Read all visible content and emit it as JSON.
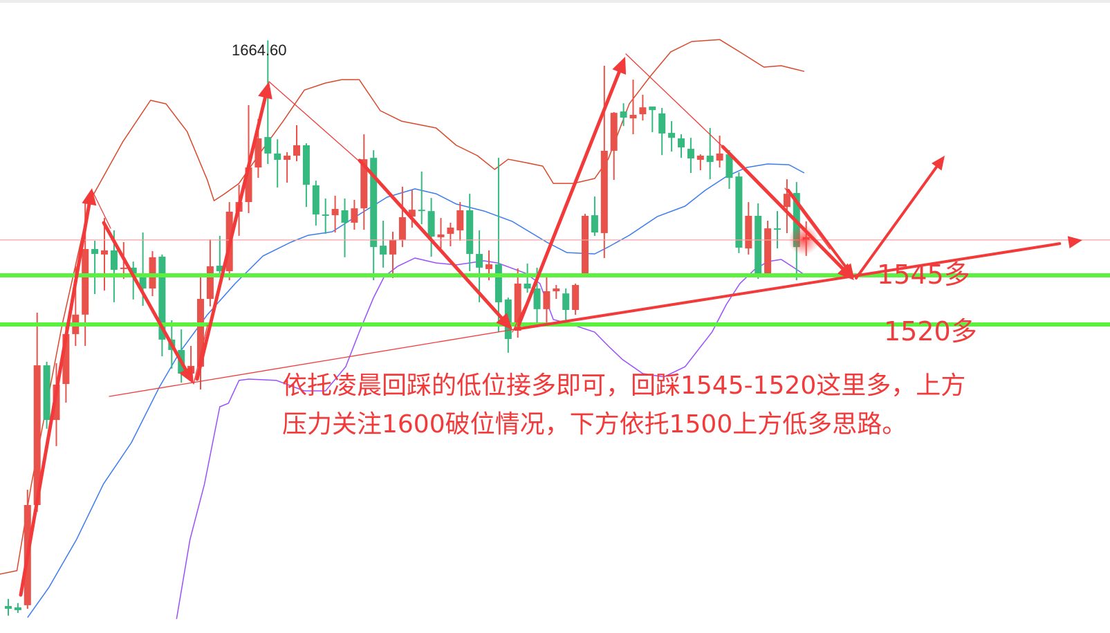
{
  "chart_data": {
    "type": "candlestick",
    "title": "",
    "xlabel": "",
    "ylabel": "",
    "ylim": [
      1370,
      1685
    ],
    "grid": false,
    "colors": {
      "up": "#e8524a",
      "down": "#35b97f",
      "upper_band": "#d9482b",
      "middle_band": "#3a7bf0",
      "lower_band": "#9b4dff",
      "support_lines": "#5ef040",
      "last_price_line": "#f4a0a0",
      "annotation": "#f23a3a"
    },
    "candles_ohlc": [
      [
        1376.7,
        1380.3,
        1371.8,
        1375.3
      ],
      [
        1376.0,
        1378.2,
        1373.2,
        1374.6
      ],
      [
        1377.1,
        1435.9,
        1375.3,
        1428.1
      ],
      [
        1428.1,
        1526.0,
        1424.6,
        1499.2
      ],
      [
        1499.2,
        1501.0,
        1466.9,
        1471.4
      ],
      [
        1471.4,
        1500.3,
        1458.1,
        1489.4
      ],
      [
        1489.7,
        1520.4,
        1480.2,
        1515.1
      ],
      [
        1515.1,
        1549.6,
        1509.1,
        1525.0
      ],
      [
        1525.0,
        1582.3,
        1509.1,
        1558.4
      ],
      [
        1558.4,
        1562.6,
        1535.5,
        1555.9
      ],
      [
        1555.6,
        1574.2,
        1537.3,
        1557.7
      ],
      [
        1557.7,
        1567.9,
        1531.3,
        1547.8
      ],
      [
        1548.2,
        1561.9,
        1543.2,
        1548.9
      ],
      [
        1548.9,
        1552.0,
        1532.7,
        1544.6
      ],
      [
        1544.3,
        1566.8,
        1529.5,
        1538.3
      ],
      [
        1538.3,
        1557.3,
        1534.4,
        1554.2
      ],
      [
        1554.5,
        1555.6,
        1503.8,
        1512.3
      ],
      [
        1512.3,
        1522.1,
        1497.5,
        1507.0
      ],
      [
        1507.0,
        1517.5,
        1490.4,
        1495.0
      ],
      [
        1495.0,
        1509.1,
        1491.5,
        1498.9
      ],
      [
        1498.5,
        1544.6,
        1486.9,
        1533.0
      ],
      [
        1533.0,
        1563.3,
        1529.2,
        1549.6
      ],
      [
        1549.9,
        1565.1,
        1545.4,
        1547.1
      ],
      [
        1547.1,
        1582.3,
        1542.5,
        1577.4
      ],
      [
        1577.4,
        1591.1,
        1565.1,
        1582.3
      ],
      [
        1582.3,
        1631.6,
        1576.7,
        1599.9
      ],
      [
        1599.9,
        1624.6,
        1594.6,
        1614.7
      ],
      [
        1615.4,
        1664.6,
        1601.7,
        1607.0
      ],
      [
        1607.0,
        1614.3,
        1589.7,
        1603.8
      ],
      [
        1603.8,
        1607.7,
        1592.2,
        1605.9
      ],
      [
        1605.9,
        1621.4,
        1603.1,
        1611.2
      ],
      [
        1611.2,
        1612.2,
        1579.8,
        1591.1
      ],
      [
        1590.8,
        1593.2,
        1570.3,
        1576.0
      ],
      [
        1576.0,
        1584.1,
        1566.1,
        1575.3
      ],
      [
        1575.6,
        1585.5,
        1566.8,
        1578.8
      ],
      [
        1578.1,
        1584.1,
        1554.2,
        1571.8
      ],
      [
        1571.8,
        1583.4,
        1568.2,
        1579.1
      ],
      [
        1579.1,
        1616.8,
        1568.2,
        1604.1
      ],
      [
        1604.8,
        1608.7,
        1542.5,
        1559.4
      ],
      [
        1560.1,
        1572.8,
        1548.9,
        1555.6
      ],
      [
        1555.6,
        1567.2,
        1543.6,
        1563.0
      ],
      [
        1563.0,
        1590.1,
        1559.4,
        1574.6
      ],
      [
        1574.9,
        1588.3,
        1569.3,
        1578.4
      ],
      [
        1578.4,
        1597.8,
        1571.0,
        1578.1
      ],
      [
        1577.7,
        1584.4,
        1554.5,
        1564.7
      ],
      [
        1564.4,
        1574.2,
        1558.7,
        1565.8
      ],
      [
        1566.1,
        1571.8,
        1559.8,
        1569.3
      ],
      [
        1567.9,
        1582.3,
        1562.6,
        1578.1
      ],
      [
        1578.1,
        1586.5,
        1547.1,
        1555.9
      ],
      [
        1555.9,
        1567.9,
        1531.3,
        1548.9
      ],
      [
        1548.2,
        1557.7,
        1542.5,
        1550.6
      ],
      [
        1550.6,
        1604.8,
        1516.1,
        1531.3
      ],
      [
        1532.7,
        1533.7,
        1505.6,
        1512.6
      ],
      [
        1516.8,
        1548.5,
        1513.3,
        1540.8
      ],
      [
        1540.8,
        1551.0,
        1536.2,
        1538.3
      ],
      [
        1538.3,
        1548.9,
        1520.4,
        1527.8
      ],
      [
        1527.8,
        1545.4,
        1519.7,
        1536.9
      ],
      [
        1536.9,
        1540.1,
        1533.0,
        1538.3
      ],
      [
        1535.8,
        1538.3,
        1522.1,
        1527.4
      ],
      [
        1527.4,
        1540.8,
        1524.9,
        1540.1
      ],
      [
        1545.0,
        1576.3,
        1544.3,
        1575.3
      ],
      [
        1575.6,
        1585.1,
        1565.1,
        1566.8
      ],
      [
        1566.5,
        1651.7,
        1553.8,
        1608.4
      ],
      [
        1608.4,
        1628.1,
        1593.6,
        1627.7
      ],
      [
        1628.4,
        1632.6,
        1621.0,
        1625.3
      ],
      [
        1624.9,
        1644.6,
        1616.8,
        1626.7
      ],
      [
        1627.0,
        1636.9,
        1623.8,
        1630.5
      ],
      [
        1630.9,
        1630.9,
        1617.9,
        1629.1
      ],
      [
        1627.4,
        1630.2,
        1606.2,
        1617.2
      ],
      [
        1617.5,
        1623.5,
        1608.0,
        1615.0
      ],
      [
        1614.7,
        1616.8,
        1604.8,
        1610.1
      ],
      [
        1609.4,
        1615.0,
        1597.1,
        1604.5
      ],
      [
        1603.8,
        1606.6,
        1598.5,
        1605.9
      ],
      [
        1605.9,
        1620.0,
        1593.9,
        1602.7
      ],
      [
        1603.4,
        1616.1,
        1599.9,
        1607.0
      ],
      [
        1606.6,
        1608.7,
        1589.0,
        1594.6
      ],
      [
        1595.3,
        1597.4,
        1556.3,
        1559.1
      ],
      [
        1558.7,
        1582.3,
        1555.6,
        1575.3
      ],
      [
        1575.3,
        1581.6,
        1543.2,
        1545.0
      ],
      [
        1545.0,
        1572.8,
        1545.0,
        1568.9
      ],
      [
        1568.9,
        1577.7,
        1558.7,
        1568.2
      ],
      [
        1579.8,
        1593.9,
        1566.5,
        1586.5
      ],
      [
        1586.9,
        1592.5,
        1542.5,
        1559.4
      ],
      [
        1563.0,
        1572.5,
        1554.9,
        1564.4
      ]
    ],
    "bands": {
      "upper": [
        [
          -0.9,
          1392.9
        ],
        [
          0.9,
          1394.7
        ],
        [
          2.4,
          1438.7
        ],
        [
          5.6,
          1519.7
        ],
        [
          8.5,
          1583.0
        ],
        [
          11.9,
          1612.9
        ],
        [
          14.8,
          1634.1
        ],
        [
          16.4,
          1632.3
        ],
        [
          18.6,
          1618.2
        ],
        [
          20.7,
          1593.6
        ],
        [
          21.4,
          1583.0
        ],
        [
          22.5,
          1586.5
        ],
        [
          24.0,
          1591.8
        ],
        [
          25.0,
          1598.9
        ],
        [
          26.5,
          1609.4
        ],
        [
          28.6,
          1623.5
        ],
        [
          30.8,
          1639.3
        ],
        [
          33.0,
          1642.9
        ],
        [
          34.7,
          1644.6
        ],
        [
          36.5,
          1644.6
        ],
        [
          38.7,
          1628.8
        ],
        [
          40.9,
          1623.5
        ],
        [
          44.5,
          1620.0
        ],
        [
          46.6,
          1611.2
        ],
        [
          48.8,
          1605.9
        ],
        [
          50.6,
          1598.9
        ],
        [
          52.0,
          1604.1
        ],
        [
          53.8,
          1602.4
        ],
        [
          55.6,
          1600.6
        ],
        [
          56.7,
          1591.8
        ],
        [
          58.8,
          1591.8
        ],
        [
          61.0,
          1594.3
        ],
        [
          62.4,
          1604.1
        ],
        [
          64.6,
          1632.3
        ],
        [
          66.8,
          1646.4
        ],
        [
          68.9,
          1658.7
        ],
        [
          71.1,
          1664.0
        ],
        [
          74.0,
          1665.0
        ],
        [
          76.1,
          1658.7
        ],
        [
          78.6,
          1651.0
        ],
        [
          80.4,
          1651.7
        ],
        [
          82.8,
          1648.8
        ]
      ],
      "middle": [
        [
          2.0,
          1370.8
        ],
        [
          4.2,
          1386.0
        ],
        [
          7.1,
          1410.6
        ],
        [
          9.9,
          1438.8
        ],
        [
          12.8,
          1459.8
        ],
        [
          15.7,
          1488.0
        ],
        [
          17.8,
          1505.6
        ],
        [
          20.7,
          1524.9
        ],
        [
          23.6,
          1540.8
        ],
        [
          26.5,
          1554.9
        ],
        [
          29.4,
          1561.9
        ],
        [
          31.2,
          1565.4
        ],
        [
          33.7,
          1567.2
        ],
        [
          36.5,
          1576.0
        ],
        [
          39.4,
          1584.8
        ],
        [
          42.3,
          1589.0
        ],
        [
          44.5,
          1586.5
        ],
        [
          46.6,
          1581.3
        ],
        [
          49.5,
          1577.7
        ],
        [
          52.4,
          1572.5
        ],
        [
          56.0,
          1561.9
        ],
        [
          58.1,
          1556.6
        ],
        [
          61.0,
          1555.9
        ],
        [
          62.4,
          1559.4
        ],
        [
          64.6,
          1565.4
        ],
        [
          67.5,
          1574.9
        ],
        [
          70.4,
          1580.2
        ],
        [
          72.5,
          1588.3
        ],
        [
          74.7,
          1595.3
        ],
        [
          76.8,
          1599.9
        ],
        [
          79.0,
          1601.7
        ],
        [
          81.2,
          1601.3
        ],
        [
          82.8,
          1597.1
        ]
      ],
      "lower": [
        [
          17.5,
          1370.1
        ],
        [
          18.9,
          1410.5
        ],
        [
          20.4,
          1438.7
        ],
        [
          22.0,
          1478.1
        ],
        [
          22.9,
          1479.9
        ],
        [
          24.0,
          1491.5
        ],
        [
          25.0,
          1492.2
        ],
        [
          27.9,
          1491.5
        ],
        [
          30.8,
          1486.2
        ],
        [
          33.0,
          1486.2
        ],
        [
          35.1,
          1498.5
        ],
        [
          36.5,
          1516.1
        ],
        [
          38.0,
          1533.7
        ],
        [
          39.1,
          1544.3
        ],
        [
          40.5,
          1549.6
        ],
        [
          42.3,
          1553.8
        ],
        [
          44.5,
          1551.3
        ],
        [
          46.6,
          1550.3
        ],
        [
          49.5,
          1552.4
        ],
        [
          50.9,
          1551.3
        ],
        [
          53.8,
          1546.1
        ],
        [
          55.3,
          1540.8
        ],
        [
          56.7,
          1522.5
        ],
        [
          58.8,
          1519.7
        ],
        [
          61.0,
          1516.1
        ],
        [
          62.4,
          1509.1
        ],
        [
          63.9,
          1502.1
        ],
        [
          66.0,
          1495.0
        ],
        [
          68.2,
          1493.3
        ],
        [
          70.4,
          1498.5
        ],
        [
          71.8,
          1507.3
        ],
        [
          73.2,
          1516.1
        ],
        [
          74.7,
          1530.2
        ],
        [
          76.1,
          1540.8
        ],
        [
          77.6,
          1547.8
        ],
        [
          79.0,
          1552.0
        ],
        [
          80.4,
          1553.1
        ],
        [
          81.5,
          1549.6
        ],
        [
          82.8,
          1545.4
        ]
      ]
    },
    "last_price": 1563.0,
    "support_levels": [
      1545,
      1520
    ],
    "annotations": {
      "high_label": "1664.60",
      "level_1545": "1545多",
      "level_1520": "1520多",
      "note_line1": "依托凌晨回踩的低位接多即可，回踩1545-1520这里多，上方",
      "note_line2": "压力关注1600破位情况，下方依托1500上方低多思路。"
    }
  }
}
